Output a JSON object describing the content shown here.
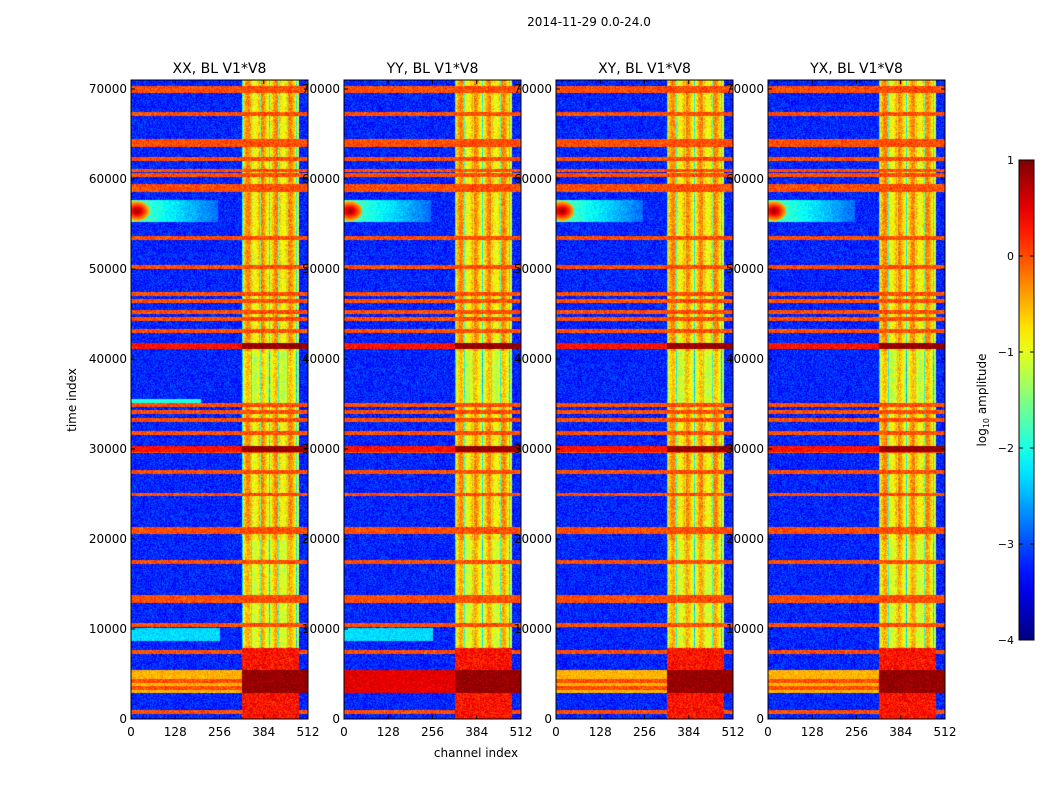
{
  "chart_data": {
    "type": "heatmap",
    "suptitle": "2014-11-29 0.0-24.0",
    "xlabel": "channel index",
    "ylabel": "time index",
    "xlim": [
      0,
      512
    ],
    "ylim": [
      0,
      71000
    ],
    "xticks": [
      0,
      128,
      256,
      384,
      512
    ],
    "xtick_labels": [
      "0",
      "128",
      "256",
      "384",
      "512"
    ],
    "yticks": [
      0,
      10000,
      20000,
      30000,
      40000,
      50000,
      60000,
      70000
    ],
    "ytick_labels": [
      "0",
      "10000",
      "20000",
      "30000",
      "40000",
      "50000",
      "60000",
      "70000"
    ],
    "colormap": "jet",
    "colorbar": {
      "label_prefix": "log",
      "label_subscript": "10",
      "label_suffix": " amplitude",
      "range": [
        -4,
        1
      ],
      "ticks": [
        1,
        0,
        -1,
        -2,
        -3,
        -4
      ],
      "tick_labels": [
        "1",
        "0",
        "−1",
        "−2",
        "−3",
        "−4"
      ]
    },
    "panels": [
      {
        "title": "XX, BL V1*V8",
        "pol": "XX"
      },
      {
        "title": "YY, BL V1*V8",
        "pol": "YY"
      },
      {
        "title": "XY, BL V1*V8",
        "pol": "XY"
      },
      {
        "title": "YX, BL V1*V8",
        "pol": "YX"
      }
    ],
    "features": {
      "background_level": -3.2,
      "band_channels": [
        [
          320,
          485
        ]
      ],
      "band_level": -0.6,
      "rfi_rows": [
        800,
        3500,
        4300,
        7500,
        10500,
        13200,
        13600,
        17500,
        20800,
        21200,
        25000,
        27500,
        29800,
        30200,
        31800,
        33300,
        34200,
        34900,
        41500,
        43200,
        44500,
        45300,
        46500,
        47300,
        50300,
        53500,
        58800,
        59300,
        60500,
        61000,
        62300,
        63800,
        64300,
        67300,
        69800,
        70200
      ],
      "strong_rfi_rows": [
        [
          3000,
          5500
        ],
        [
          29700,
          30400
        ],
        [
          41200,
          41800
        ]
      ],
      "rfi_row_level": 0.3,
      "burst_center": {
        "channel": 16,
        "time": 56500
      }
    }
  }
}
